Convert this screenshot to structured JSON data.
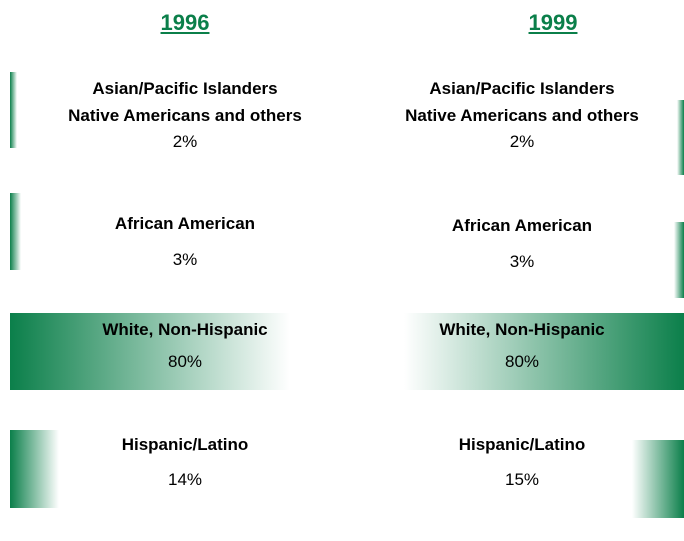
{
  "chart_data": {
    "type": "bar",
    "categories": [
      "Asian/Pacific Islanders\nNative Americans and others",
      "African American",
      "White, Non-Hispanic",
      "Hispanic/Latino"
    ],
    "series": [
      {
        "name": "1996",
        "color": "#0b7f4a",
        "values": [
          2,
          3,
          80,
          14
        ],
        "value_labels": [
          "2%",
          "3%",
          "80%",
          "14%"
        ]
      },
      {
        "name": "1999",
        "color": "#0b7f4a",
        "values": [
          2,
          3,
          80,
          15
        ],
        "value_labels": [
          "2%",
          "3%",
          "80%",
          "15%"
        ]
      }
    ]
  }
}
